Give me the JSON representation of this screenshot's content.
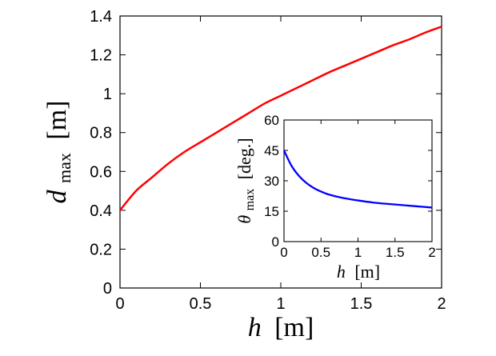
{
  "chart_data": [
    {
      "type": "line",
      "xlabel": {
        "var": "h",
        "unit": "[m]"
      },
      "ylabel": {
        "var": "d",
        "sub": "max",
        "unit": "[m]"
      },
      "xlim": [
        0,
        2
      ],
      "ylim": [
        0,
        1.4
      ],
      "xticks": [
        "0",
        "0.5",
        "1",
        "1.5",
        "2"
      ],
      "yticks": [
        "0",
        "0.2",
        "0.4",
        "0.6",
        "0.8",
        "1",
        "1.2",
        "1.4"
      ],
      "grid": false,
      "series": [
        {
          "color": "#ff0000",
          "x": [
            0,
            0.1,
            0.2,
            0.3,
            0.4,
            0.5,
            0.6,
            0.7,
            0.8,
            0.9,
            1.0,
            1.1,
            1.2,
            1.3,
            1.4,
            1.5,
            1.6,
            1.7,
            1.8,
            1.9,
            2.0
          ],
          "y": [
            0.4,
            0.5,
            0.57,
            0.64,
            0.7,
            0.75,
            0.8,
            0.85,
            0.9,
            0.95,
            0.99,
            1.03,
            1.07,
            1.11,
            1.145,
            1.18,
            1.215,
            1.25,
            1.28,
            1.315,
            1.345
          ]
        }
      ]
    },
    {
      "type": "line",
      "inset": true,
      "xlabel": {
        "var": "h",
        "unit": "[m]"
      },
      "ylabel": {
        "var": "θ",
        "sub": "max",
        "unit": "[deg.]"
      },
      "xlim": [
        0,
        2
      ],
      "ylim": [
        0,
        60
      ],
      "xticks": [
        "0",
        "0.5",
        "1",
        "1.5",
        "2"
      ],
      "yticks": [
        "0",
        "15",
        "30",
        "45",
        "60"
      ],
      "grid": false,
      "series": [
        {
          "color": "#0000ff",
          "x": [
            0,
            0.1,
            0.2,
            0.3,
            0.4,
            0.5,
            0.6,
            0.8,
            1.0,
            1.2,
            1.4,
            1.6,
            1.8,
            2.0
          ],
          "y": [
            45,
            37.5,
            32.5,
            29,
            26.5,
            24.7,
            23.3,
            21.5,
            20.3,
            19.3,
            18.6,
            18.0,
            17.4,
            16.8
          ]
        }
      ]
    }
  ]
}
